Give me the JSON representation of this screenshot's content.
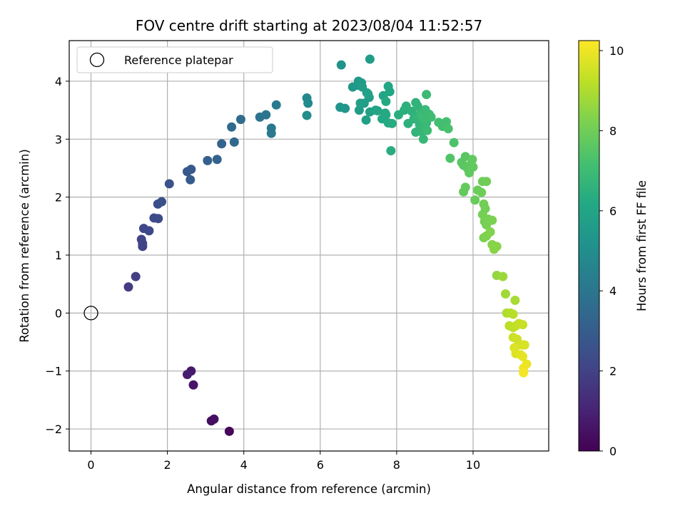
{
  "chart_data": {
    "type": "scatter",
    "title": "FOV centre drift starting at 2023/08/04 11:52:57",
    "xlabel": "Angular distance from reference (arcmin)",
    "ylabel": "Rotation from reference (arcmin)",
    "xlim": [
      -0.57,
      11.98
    ],
    "ylim": [
      -2.38,
      4.7
    ],
    "xticks": [
      0,
      2,
      4,
      6,
      8,
      10
    ],
    "yticks": [
      -2,
      -1,
      0,
      1,
      2,
      3,
      4
    ],
    "grid": true,
    "legend": {
      "position": "top-left",
      "entries": [
        "Reference platepar"
      ]
    },
    "reference_point": {
      "x": 0,
      "y": 0,
      "label": "Reference platepar"
    },
    "colorbar": {
      "label": "Hours from first FF file",
      "colormap": "viridis",
      "range": [
        0,
        10.25
      ],
      "ticks": [
        0,
        2,
        4,
        6,
        8,
        10
      ]
    },
    "series": [
      {
        "points": [
          [
            3.62,
            -2.04,
            0.2
          ],
          [
            3.15,
            -1.86,
            0.35
          ],
          [
            3.22,
            -1.83,
            0.45
          ],
          [
            2.68,
            -1.24,
            0.6
          ],
          [
            2.62,
            -1.0,
            0.7
          ],
          [
            2.52,
            -1.06,
            0.8
          ],
          [
            0.98,
            0.45,
            1.8
          ],
          [
            1.17,
            0.63,
            1.9
          ],
          [
            1.35,
            1.15,
            2.0
          ],
          [
            1.35,
            1.2,
            2.05
          ],
          [
            1.32,
            1.27,
            2.1
          ],
          [
            1.38,
            1.46,
            2.15
          ],
          [
            1.52,
            1.42,
            2.2
          ],
          [
            1.65,
            1.64,
            2.3
          ],
          [
            1.76,
            1.63,
            2.35
          ],
          [
            1.75,
            1.88,
            2.4
          ],
          [
            1.85,
            1.92,
            2.45
          ],
          [
            2.05,
            2.23,
            2.6
          ],
          [
            2.52,
            2.44,
            2.8
          ],
          [
            2.62,
            2.48,
            2.85
          ],
          [
            2.6,
            2.3,
            2.9
          ],
          [
            3.05,
            2.63,
            3.1
          ],
          [
            3.3,
            2.65,
            3.2
          ],
          [
            3.42,
            2.92,
            3.3
          ],
          [
            3.75,
            2.95,
            3.5
          ],
          [
            3.68,
            3.21,
            3.55
          ],
          [
            3.92,
            3.34,
            3.6
          ],
          [
            4.42,
            3.38,
            3.9
          ],
          [
            4.58,
            3.42,
            4.0
          ],
          [
            4.72,
            3.19,
            4.1
          ],
          [
            4.72,
            3.1,
            4.15
          ],
          [
            4.85,
            3.59,
            4.2
          ],
          [
            5.65,
            3.71,
            4.8
          ],
          [
            5.68,
            3.62,
            4.85
          ],
          [
            5.65,
            3.41,
            4.9
          ],
          [
            6.55,
            4.28,
            5.2
          ],
          [
            6.52,
            3.55,
            5.3
          ],
          [
            6.65,
            3.53,
            5.35
          ],
          [
            6.85,
            3.9,
            5.4
          ],
          [
            6.98,
            3.93,
            5.45
          ],
          [
            7.0,
            4.0,
            5.5
          ],
          [
            7.08,
            3.97,
            5.55
          ],
          [
            7.3,
            4.38,
            5.6
          ],
          [
            7.02,
            3.5,
            5.6
          ],
          [
            7.15,
            3.62,
            5.65
          ],
          [
            7.22,
            3.8,
            5.65
          ],
          [
            7.28,
            3.72,
            5.7
          ],
          [
            7.1,
            3.9,
            5.7
          ],
          [
            7.05,
            3.62,
            5.75
          ],
          [
            7.2,
            3.33,
            5.8
          ],
          [
            7.3,
            3.47,
            5.8
          ],
          [
            7.45,
            3.5,
            5.85
          ],
          [
            7.25,
            3.78,
            5.9
          ],
          [
            7.5,
            3.49,
            5.95
          ],
          [
            7.65,
            3.75,
            6.0
          ],
          [
            7.78,
            3.91,
            6.05
          ],
          [
            7.82,
            3.82,
            6.1
          ],
          [
            7.7,
            3.45,
            6.1
          ],
          [
            7.62,
            3.35,
            6.15
          ],
          [
            7.72,
            3.42,
            6.2
          ],
          [
            7.72,
            3.65,
            6.2
          ],
          [
            7.78,
            3.28,
            6.25
          ],
          [
            7.88,
            3.27,
            6.3
          ],
          [
            7.85,
            2.8,
            6.35
          ],
          [
            8.05,
            3.42,
            6.4
          ],
          [
            8.2,
            3.5,
            6.45
          ],
          [
            8.25,
            3.57,
            6.5
          ],
          [
            8.3,
            3.27,
            6.5
          ],
          [
            8.4,
            3.48,
            6.55
          ],
          [
            8.45,
            3.35,
            6.6
          ],
          [
            8.5,
            3.63,
            6.6
          ],
          [
            8.55,
            3.57,
            6.65
          ],
          [
            8.5,
            3.12,
            6.65
          ],
          [
            8.55,
            3.37,
            6.7
          ],
          [
            8.6,
            3.25,
            6.7
          ],
          [
            8.63,
            3.44,
            6.75
          ],
          [
            8.65,
            3.13,
            6.75
          ],
          [
            8.7,
            3.0,
            6.8
          ],
          [
            8.72,
            3.2,
            6.8
          ],
          [
            8.75,
            3.51,
            6.85
          ],
          [
            8.78,
            3.28,
            6.85
          ],
          [
            8.78,
            3.77,
            6.9
          ],
          [
            8.65,
            3.4,
            6.9
          ],
          [
            8.8,
            3.15,
            6.95
          ],
          [
            8.85,
            3.43,
            6.95
          ],
          [
            8.7,
            3.35,
            7.0
          ],
          [
            8.9,
            3.38,
            7.05
          ],
          [
            9.1,
            3.29,
            7.1
          ],
          [
            9.2,
            3.22,
            7.15
          ],
          [
            9.3,
            3.3,
            7.2
          ],
          [
            9.35,
            3.18,
            7.25
          ],
          [
            9.5,
            2.94,
            7.35
          ],
          [
            9.4,
            2.67,
            7.45
          ],
          [
            9.7,
            2.6,
            7.55
          ],
          [
            9.75,
            2.55,
            7.6
          ],
          [
            9.8,
            2.7,
            7.6
          ],
          [
            9.85,
            2.5,
            7.65
          ],
          [
            9.9,
            2.42,
            7.7
          ],
          [
            9.95,
            2.57,
            7.7
          ],
          [
            9.98,
            2.65,
            7.75
          ],
          [
            10.0,
            2.52,
            7.75
          ],
          [
            9.75,
            2.09,
            7.8
          ],
          [
            9.8,
            2.17,
            7.8
          ],
          [
            10.05,
            1.95,
            7.85
          ],
          [
            10.12,
            2.12,
            7.9
          ],
          [
            10.22,
            2.08,
            7.95
          ],
          [
            10.25,
            2.27,
            7.95
          ],
          [
            10.35,
            2.27,
            8.0
          ],
          [
            10.28,
            1.88,
            8.05
          ],
          [
            10.32,
            1.8,
            8.05
          ],
          [
            10.25,
            1.7,
            8.1
          ],
          [
            10.3,
            1.58,
            8.1
          ],
          [
            10.35,
            1.52,
            8.15
          ],
          [
            10.4,
            1.62,
            8.15
          ],
          [
            10.5,
            1.6,
            8.2
          ],
          [
            10.28,
            1.3,
            8.2
          ],
          [
            10.35,
            1.33,
            8.25
          ],
          [
            10.45,
            1.4,
            8.3
          ],
          [
            10.5,
            1.18,
            8.35
          ],
          [
            10.55,
            1.1,
            8.4
          ],
          [
            10.62,
            1.15,
            8.4
          ],
          [
            10.62,
            0.65,
            8.6
          ],
          [
            10.78,
            0.63,
            8.7
          ],
          [
            10.85,
            0.33,
            8.8
          ],
          [
            11.1,
            0.22,
            8.9
          ],
          [
            10.88,
            0.0,
            9.0
          ],
          [
            10.98,
            0.0,
            9.1
          ],
          [
            11.05,
            -0.02,
            9.15
          ],
          [
            10.95,
            -0.22,
            9.2
          ],
          [
            11.05,
            -0.25,
            9.25
          ],
          [
            11.12,
            -0.22,
            9.3
          ],
          [
            11.2,
            -0.18,
            9.35
          ],
          [
            11.3,
            -0.2,
            9.4
          ],
          [
            11.05,
            -0.42,
            9.45
          ],
          [
            11.15,
            -0.45,
            9.5
          ],
          [
            11.2,
            -0.55,
            9.55
          ],
          [
            11.3,
            -0.55,
            9.6
          ],
          [
            11.35,
            -0.55,
            9.65
          ],
          [
            11.08,
            -0.6,
            9.7
          ],
          [
            11.12,
            -0.7,
            9.75
          ],
          [
            11.25,
            -0.72,
            9.8
          ],
          [
            11.3,
            -0.75,
            9.85
          ],
          [
            11.4,
            -0.88,
            9.95
          ],
          [
            11.32,
            -0.95,
            10.0
          ],
          [
            11.32,
            -1.03,
            10.1
          ]
        ]
      }
    ],
    "colors": {
      "reference_marker": "#000000",
      "grid": "#b0b0b0",
      "axes": "#000000",
      "legend_border": "#cccccc"
    }
  }
}
